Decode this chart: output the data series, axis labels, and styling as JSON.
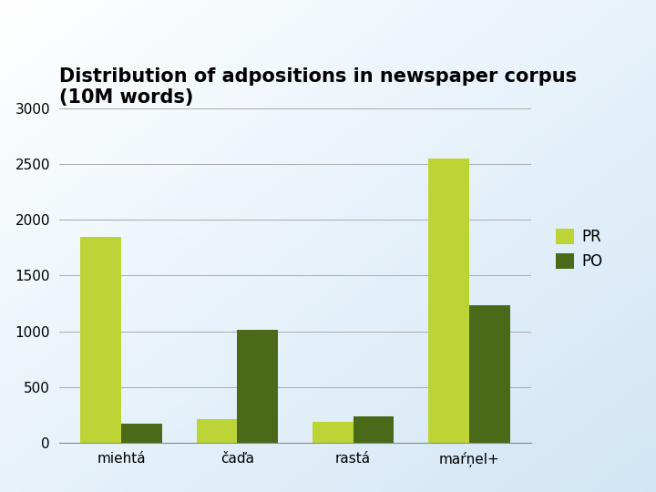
{
  "title_line1": "Distribution of adpositions in newspaper corpus",
  "title_line2": "(10M words)",
  "categories": [
    "miehtá",
    "čaďa",
    "rastá",
    "maŕņel+"
  ],
  "pr_values": [
    1850,
    210,
    190,
    2550
  ],
  "po_values": [
    170,
    1010,
    240,
    1230
  ],
  "pr_color": "#bcd435",
  "po_color": "#4a6a1a",
  "ylim": [
    0,
    3000
  ],
  "yticks": [
    0,
    500,
    1000,
    1500,
    2000,
    2500,
    3000
  ],
  "legend_labels": [
    "PR",
    "PO"
  ],
  "title_fontsize": 15,
  "tick_fontsize": 11,
  "legend_fontsize": 12,
  "bar_width": 0.35,
  "grid_color": "#aaaaaa",
  "spine_color": "#888888"
}
